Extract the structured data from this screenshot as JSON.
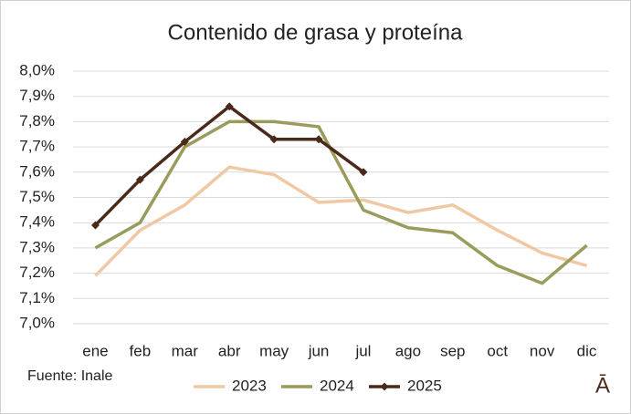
{
  "chart_data": {
    "type": "line",
    "title": "Contenido de grasa y proteína",
    "categories": [
      "ene",
      "feb",
      "mar",
      "abr",
      "may",
      "jun",
      "jul",
      "ago",
      "sep",
      "oct",
      "nov",
      "dic"
    ],
    "series": [
      {
        "name": "2023",
        "color": "#f0c8a4",
        "values": [
          7.19,
          7.37,
          7.47,
          7.62,
          7.59,
          7.48,
          7.49,
          7.44,
          7.47,
          7.37,
          7.28,
          7.23
        ]
      },
      {
        "name": "2024",
        "color": "#9a9c5c",
        "values": [
          7.3,
          7.4,
          7.7,
          7.8,
          7.8,
          7.78,
          7.45,
          7.38,
          7.36,
          7.23,
          7.16,
          7.31
        ]
      },
      {
        "name": "2025",
        "color": "#4a2a1a",
        "values": [
          7.39,
          7.57,
          7.72,
          7.86,
          7.73,
          7.73,
          7.6,
          null,
          null,
          null,
          null,
          null
        ],
        "markers": true
      }
    ],
    "ylim": [
      7.0,
      8.0
    ],
    "yticks": [
      {
        "value": 7.0,
        "label": "7,0%"
      },
      {
        "value": 7.1,
        "label": "7,1%"
      },
      {
        "value": 7.2,
        "label": "7,2%"
      },
      {
        "value": 7.3,
        "label": "7,3%"
      },
      {
        "value": 7.4,
        "label": "7,4%"
      },
      {
        "value": 7.5,
        "label": "7,5%"
      },
      {
        "value": 7.6,
        "label": "7,6%"
      },
      {
        "value": 7.7,
        "label": "7,7%"
      },
      {
        "value": 7.8,
        "label": "7,8%"
      },
      {
        "value": 7.9,
        "label": "7,9%"
      },
      {
        "value": 8.0,
        "label": "8,0%"
      }
    ],
    "grid": true,
    "legend": "bottom",
    "source": "Fuente: Inale",
    "logo": "Ā"
  }
}
